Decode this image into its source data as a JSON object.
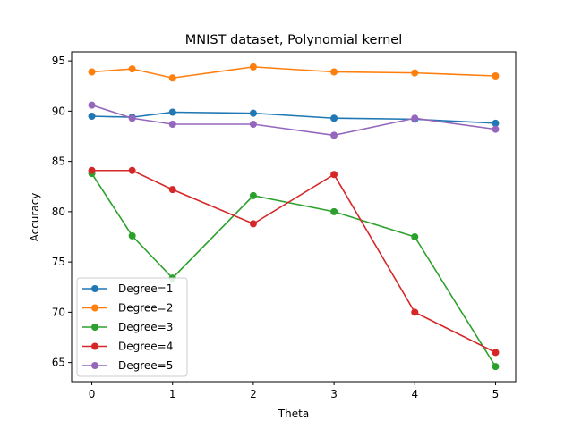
{
  "chart_data": {
    "type": "line",
    "title": "MNIST dataset, Polynomial kernel",
    "xlabel": "Theta",
    "ylabel": "Accuracy",
    "x": [
      0,
      0.5,
      1,
      2,
      3,
      4,
      5
    ],
    "xlim": [
      -0.25,
      5.25
    ],
    "ylim": [
      63.1,
      95.9
    ],
    "xticks": [
      0,
      1,
      2,
      3,
      4,
      5
    ],
    "yticks": [
      65,
      70,
      75,
      80,
      85,
      90,
      95
    ],
    "grid": false,
    "legend_position": "lower-left",
    "markers": "circle",
    "series": [
      {
        "name": "Degree=1",
        "color": "#1f77b4",
        "values": [
          89.5,
          89.4,
          89.9,
          89.8,
          89.3,
          89.2,
          88.8
        ]
      },
      {
        "name": "Degree=2",
        "color": "#ff7f0e",
        "values": [
          93.9,
          94.2,
          93.3,
          94.4,
          93.9,
          93.8,
          93.5
        ]
      },
      {
        "name": "Degree=3",
        "color": "#2ca02c",
        "values": [
          83.8,
          77.6,
          73.4,
          81.6,
          80.0,
          77.5,
          64.6
        ]
      },
      {
        "name": "Degree=4",
        "color": "#d62728",
        "values": [
          84.1,
          84.1,
          82.2,
          78.8,
          83.7,
          70.0,
          66.0
        ]
      },
      {
        "name": "Degree=5",
        "color": "#9467bd",
        "values": [
          90.6,
          89.3,
          88.7,
          88.7,
          87.6,
          89.3,
          88.2
        ]
      }
    ]
  }
}
